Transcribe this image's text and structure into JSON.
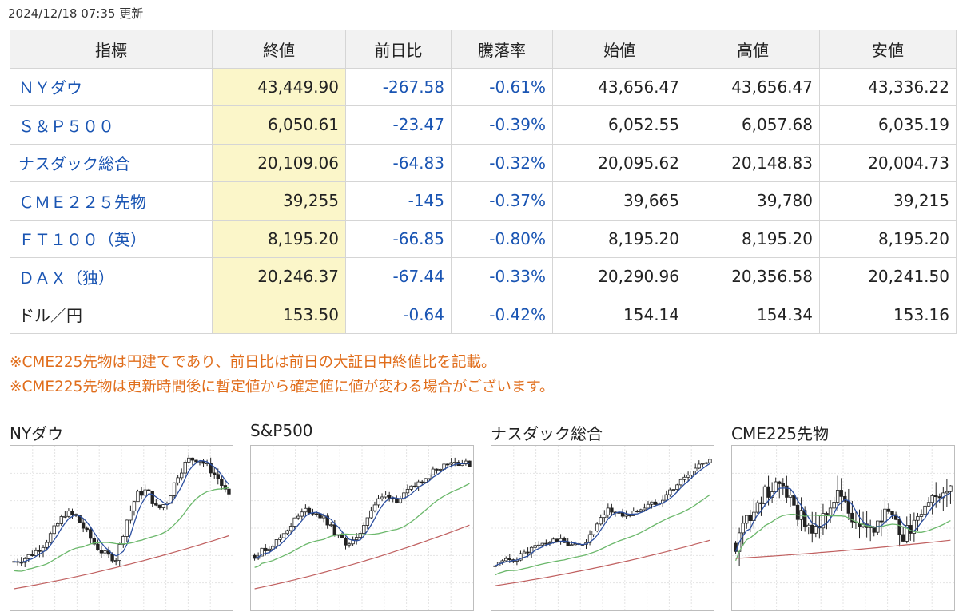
{
  "updated": "2024/12/18 07:35 更新",
  "table": {
    "headers": [
      "指標",
      "終値",
      "前日比",
      "騰落率",
      "始値",
      "高値",
      "安値"
    ],
    "rows": [
      {
        "name": "ＮＹダウ",
        "link": true,
        "close": "43,449.90",
        "change": "-267.58",
        "pct": "-0.61%",
        "open": "43,656.47",
        "high": "43,656.47",
        "low": "43,336.22"
      },
      {
        "name": "Ｓ＆Ｐ５００",
        "link": true,
        "close": "6,050.61",
        "change": "-23.47",
        "pct": "-0.39%",
        "open": "6,052.55",
        "high": "6,057.68",
        "low": "6,035.19"
      },
      {
        "name": "ナスダック総合",
        "link": true,
        "close": "20,109.06",
        "change": "-64.83",
        "pct": "-0.32%",
        "open": "20,095.62",
        "high": "20,148.83",
        "low": "20,004.73"
      },
      {
        "name": "ＣＭＥ２２５先物",
        "link": true,
        "close": "39,255",
        "change": "-145",
        "pct": "-0.37%",
        "open": "39,665",
        "high": "39,780",
        "low": "39,215"
      },
      {
        "name": "ＦＴ１００（英）",
        "link": true,
        "close": "8,195.20",
        "change": "-66.85",
        "pct": "-0.80%",
        "open": "8,195.20",
        "high": "8,195.20",
        "low": "8,195.20"
      },
      {
        "name": "ＤＡＸ（独）",
        "link": true,
        "close": "20,246.37",
        "change": "-67.44",
        "pct": "-0.33%",
        "open": "20,290.96",
        "high": "20,356.58",
        "low": "20,241.50"
      },
      {
        "name": "ドル／円",
        "link": false,
        "close": "153.50",
        "change": "-0.64",
        "pct": "-0.42%",
        "open": "154.14",
        "high": "154.34",
        "low": "153.16"
      }
    ]
  },
  "notes": [
    "※CME225先物は円建てであり、前日比は前日の大証日中終値比を記載。",
    "※CME225先物は更新時間後に暫定値から確定値に値が変わる場合がございます。"
  ],
  "charts": [
    {
      "title": "NYダウ",
      "shape": [
        0.28,
        0.3,
        0.34,
        0.4,
        0.5,
        0.6,
        0.58,
        0.48,
        0.38,
        0.32,
        0.3,
        0.55,
        0.72,
        0.75,
        0.62,
        0.68,
        0.85,
        0.95,
        0.96,
        0.9,
        0.82,
        0.7
      ],
      "vol": 0.05,
      "bottom": 0.1,
      "ma_end": 0.45
    },
    {
      "title": "S&P500",
      "shape": [
        0.32,
        0.36,
        0.4,
        0.48,
        0.56,
        0.62,
        0.6,
        0.55,
        0.45,
        0.4,
        0.42,
        0.58,
        0.68,
        0.72,
        0.68,
        0.74,
        0.8,
        0.86,
        0.9,
        0.94,
        0.93,
        0.92
      ],
      "vol": 0.04,
      "bottom": 0.1,
      "ma_end": 0.52
    },
    {
      "title": "ナスダック総合",
      "shape": [
        0.25,
        0.28,
        0.3,
        0.34,
        0.38,
        0.4,
        0.42,
        0.4,
        0.38,
        0.42,
        0.52,
        0.62,
        0.6,
        0.58,
        0.62,
        0.65,
        0.68,
        0.74,
        0.8,
        0.86,
        0.92,
        0.96
      ],
      "vol": 0.04,
      "bottom": 0.12,
      "ma_end": 0.42
    },
    {
      "title": "CME225先物",
      "shape": [
        0.4,
        0.55,
        0.68,
        0.72,
        0.8,
        0.74,
        0.62,
        0.55,
        0.5,
        0.62,
        0.75,
        0.6,
        0.52,
        0.48,
        0.55,
        0.62,
        0.45,
        0.5,
        0.58,
        0.66,
        0.74,
        0.78
      ],
      "vol": 0.12,
      "bottom": 0.3,
      "ma_end": 0.42
    }
  ],
  "colors": {
    "link": "#1a55b3",
    "note": "#e06d1b",
    "close_bg": "#fbf6c9",
    "ma_short": "#2c4fa0",
    "ma_mid": "#6cb86c",
    "ma_long": "#c06060"
  }
}
